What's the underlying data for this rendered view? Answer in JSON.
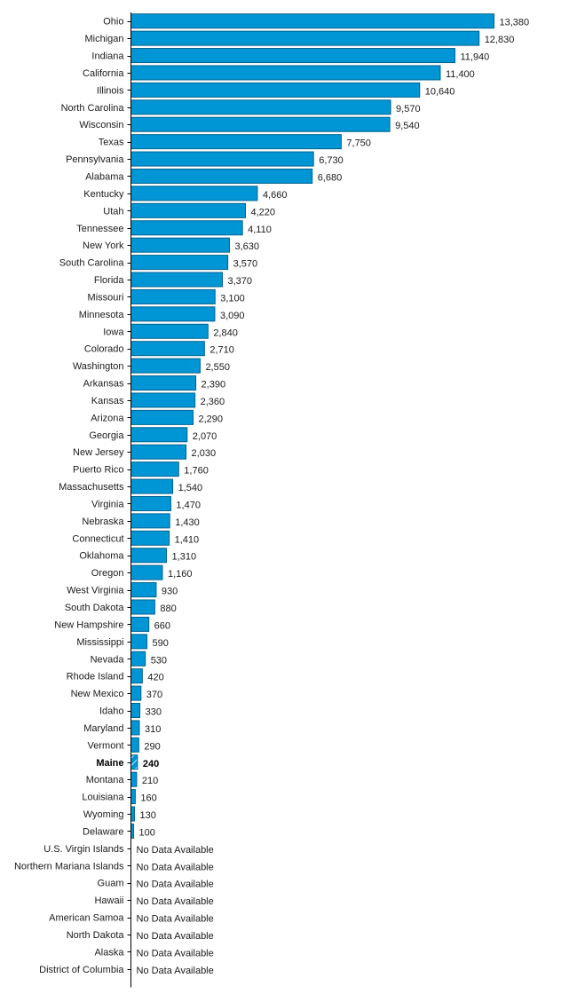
{
  "chart_data": {
    "type": "bar",
    "orientation": "horizontal",
    "title": "",
    "xlabel": "",
    "ylabel": "",
    "grid": false,
    "legend": "none",
    "xlim": [
      0,
      13380
    ],
    "highlight": "Maine",
    "no_data_label": "No Data Available",
    "colors": {
      "bar": "#0096d6",
      "bar_border": "#00628f"
    },
    "categories": [
      "Ohio",
      "Michigan",
      "Indiana",
      "California",
      "Illinois",
      "North Carolina",
      "Wisconsin",
      "Texas",
      "Pennsylvania",
      "Alabama",
      "Kentucky",
      "Utah",
      "Tennessee",
      "New York",
      "South Carolina",
      "Florida",
      "Missouri",
      "Minnesota",
      "Iowa",
      "Colorado",
      "Washington",
      "Arkansas",
      "Kansas",
      "Arizona",
      "Georgia",
      "New Jersey",
      "Puerto Rico",
      "Massachusetts",
      "Virginia",
      "Nebraska",
      "Connecticut",
      "Oklahoma",
      "Oregon",
      "West Virginia",
      "South Dakota",
      "New Hampshire",
      "Mississippi",
      "Nevada",
      "Rhode Island",
      "New Mexico",
      "Idaho",
      "Maryland",
      "Vermont",
      "Maine",
      "Montana",
      "Louisiana",
      "Wyoming",
      "Delaware",
      "U.S. Virgin Islands",
      "Northern Mariana Islands",
      "Guam",
      "Hawaii",
      "American Samoa",
      "North Dakota",
      "Alaska",
      "District of Columbia"
    ],
    "values": [
      13380,
      12830,
      11940,
      11400,
      10640,
      9570,
      9540,
      7750,
      6730,
      6680,
      4660,
      4220,
      4110,
      3630,
      3570,
      3370,
      3100,
      3090,
      2840,
      2710,
      2550,
      2390,
      2360,
      2290,
      2070,
      2030,
      1760,
      1540,
      1470,
      1430,
      1410,
      1310,
      1160,
      930,
      880,
      660,
      590,
      530,
      420,
      370,
      330,
      310,
      290,
      240,
      210,
      160,
      130,
      100,
      null,
      null,
      null,
      null,
      null,
      null,
      null,
      null
    ],
    "value_labels": [
      "13,380",
      "12,830",
      "11,940",
      "11,400",
      "10,640",
      "9,570",
      "9,540",
      "7,750",
      "6,730",
      "6,680",
      "4,660",
      "4,220",
      "4,110",
      "3,630",
      "3,570",
      "3,370",
      "3,100",
      "3,090",
      "2,840",
      "2,710",
      "2,550",
      "2,390",
      "2,360",
      "2,290",
      "2,070",
      "2,030",
      "1,760",
      "1,540",
      "1,470",
      "1,430",
      "1,410",
      "1,310",
      "1,160",
      "930",
      "880",
      "660",
      "590",
      "530",
      "420",
      "370",
      "330",
      "310",
      "290",
      "240",
      "210",
      "160",
      "130",
      "100",
      "No Data Available",
      "No Data Available",
      "No Data Available",
      "No Data Available",
      "No Data Available",
      "No Data Available",
      "No Data Available",
      "No Data Available"
    ]
  }
}
